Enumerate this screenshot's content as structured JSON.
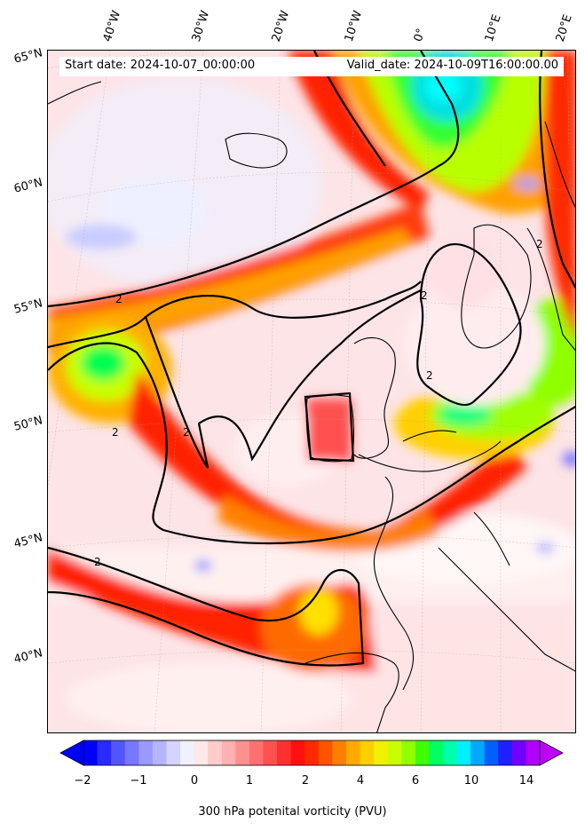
{
  "header": {
    "start_date": "Start date: 2024-10-07_00:00:00",
    "valid_date": "Valid_date: 2024-10-09T16:00:00.00"
  },
  "lat_labels": [
    "65°N",
    "60°N",
    "55°N",
    "50°N",
    "45°N",
    "40°N"
  ],
  "lon_labels": [
    "40°W",
    "30°W",
    "20°W",
    "10°W",
    "0°",
    "10°E",
    "20°E"
  ],
  "contour_label": "2",
  "colorbar": {
    "ticks": [
      "−2",
      "−1",
      "0",
      "1",
      "2",
      "4",
      "6",
      "10",
      "14"
    ],
    "label": "300 hPa potenital vorticity (PVU)",
    "colors": [
      "#0000ff",
      "#2a2aff",
      "#5555ff",
      "#7777ff",
      "#9999ff",
      "#b4b4ff",
      "#d4d4ff",
      "#f0f0ff",
      "#ffe8e8",
      "#ffcccc",
      "#ffb0b0",
      "#ff9090",
      "#ff7070",
      "#ff5050",
      "#ff3030",
      "#ff1010",
      "#ff2a00",
      "#ff5500",
      "#ff8000",
      "#ffaa00",
      "#ffd000",
      "#f0f000",
      "#c8ff00",
      "#90ff00",
      "#40ff00",
      "#00ff60",
      "#00ffaa",
      "#00f0ff",
      "#00a8ff",
      "#0060ff",
      "#2020ff",
      "#7000ff",
      "#b000ff"
    ],
    "under_color": "#0000ff",
    "over_color": "#c000ff"
  }
}
